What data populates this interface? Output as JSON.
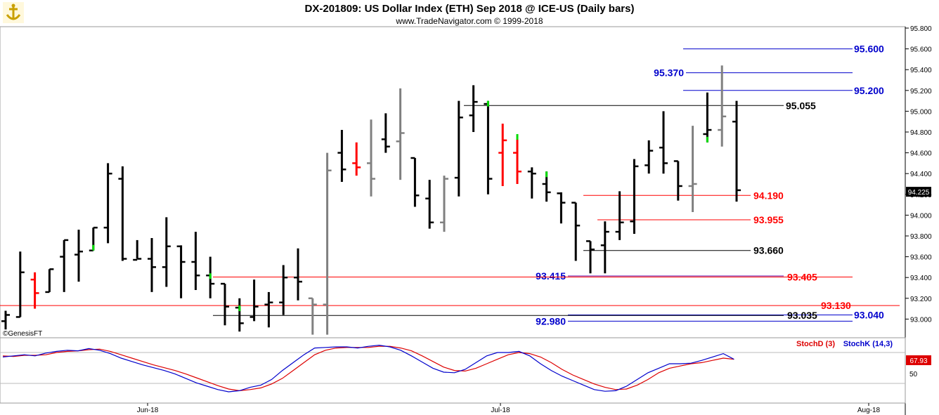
{
  "header": {
    "title": "DX-201809:  US Dollar Index (ETH) Sep 2018 @ ICE-US  (Daily bars)",
    "copyright": "www.TradeNavigator.com © 1999-2018",
    "logo_icon": "anchor-logo-icon"
  },
  "watermark": "©GenesisFT",
  "colors": {
    "up": "#000000",
    "down": "#000000",
    "gray": "#808080",
    "red_bar": "#ff0000",
    "green_tick": "#00dd00",
    "blue_level": "#0000cc",
    "red_level": "#ff0000",
    "black_level": "#000000",
    "purple_level": "#660099",
    "stoch_d": "#dd0000",
    "stoch_k": "#0000cc"
  },
  "chart_data": {
    "type": "ohlc",
    "price_axis": {
      "min": 92.85,
      "max": 95.9,
      "ticks": [
        "95.800",
        "95.600",
        "95.400",
        "95.200",
        "95.000",
        "94.800",
        "94.600",
        "94.400",
        "94.200",
        "94.000",
        "93.800",
        "93.600",
        "93.400",
        "93.200",
        "93.000"
      ]
    },
    "current_price": "94.225",
    "x_labels": [
      "Jun-18",
      "Jul-18",
      "Aug-18"
    ],
    "bars": [
      {
        "o": 92.98,
        "h": 93.08,
        "l": 92.9,
        "c": 93.04,
        "col": "black"
      },
      {
        "o": 93.02,
        "h": 93.65,
        "l": 93.02,
        "c": 93.45,
        "col": "black"
      },
      {
        "o": 93.38,
        "h": 93.45,
        "l": 93.1,
        "c": 93.25,
        "col": "red"
      },
      {
        "o": 93.26,
        "h": 93.48,
        "l": 93.26,
        "c": 93.48,
        "col": "black"
      },
      {
        "o": 93.6,
        "h": 93.76,
        "l": 93.26,
        "c": 93.76,
        "col": "black"
      },
      {
        "o": 93.62,
        "h": 93.86,
        "l": 93.36,
        "c": 93.65,
        "col": "black"
      },
      {
        "o": 93.66,
        "h": 93.88,
        "l": 93.66,
        "c": 93.88,
        "col": "black",
        "g": "l"
      },
      {
        "o": 93.88,
        "h": 94.5,
        "l": 93.73,
        "c": 94.4,
        "col": "black"
      },
      {
        "o": 94.35,
        "h": 94.47,
        "l": 93.56,
        "c": 93.58,
        "col": "black"
      },
      {
        "o": 93.57,
        "h": 93.76,
        "l": 93.58,
        "c": 93.58,
        "col": "black"
      },
      {
        "o": 93.58,
        "h": 93.78,
        "l": 93.26,
        "c": 93.5,
        "col": "black"
      },
      {
        "o": 93.5,
        "h": 93.98,
        "l": 93.31,
        "c": 93.7,
        "col": "black"
      },
      {
        "o": 93.7,
        "h": 93.71,
        "l": 93.2,
        "c": 93.55,
        "col": "black"
      },
      {
        "o": 93.55,
        "h": 93.84,
        "l": 93.28,
        "c": 93.42,
        "col": "black"
      },
      {
        "o": 93.42,
        "h": 93.6,
        "l": 93.2,
        "c": 93.34,
        "col": "black",
        "g": "o"
      },
      {
        "o": 93.34,
        "h": 93.34,
        "l": 92.94,
        "c": 93.12,
        "col": "black"
      },
      {
        "o": 93.11,
        "h": 93.2,
        "l": 92.88,
        "c": 92.96,
        "col": "black",
        "g": "o"
      },
      {
        "o": 93.02,
        "h": 93.38,
        "l": 92.98,
        "c": 93.12,
        "col": "black"
      },
      {
        "o": 93.14,
        "h": 93.26,
        "l": 92.92,
        "c": 93.16,
        "col": "black"
      },
      {
        "o": 93.16,
        "h": 93.52,
        "l": 93.04,
        "c": 93.4,
        "col": "black"
      },
      {
        "o": 93.4,
        "h": 93.68,
        "l": 93.18,
        "c": 93.36,
        "col": "black"
      },
      {
        "o": 93.2,
        "h": 93.2,
        "l": 92.85,
        "c": 93.14,
        "col": "gray"
      },
      {
        "o": 93.14,
        "h": 94.6,
        "l": 92.85,
        "c": 94.43,
        "col": "gray"
      },
      {
        "o": 94.6,
        "h": 94.82,
        "l": 94.32,
        "c": 94.44,
        "col": "black"
      },
      {
        "o": 94.5,
        "h": 94.7,
        "l": 94.38,
        "c": 94.46,
        "col": "red"
      },
      {
        "o": 94.5,
        "h": 94.92,
        "l": 94.18,
        "c": 94.35,
        "col": "gray"
      },
      {
        "o": 94.73,
        "h": 94.98,
        "l": 94.6,
        "c": 94.66,
        "col": "black"
      },
      {
        "o": 94.71,
        "h": 95.22,
        "l": 94.34,
        "c": 94.79,
        "col": "gray"
      },
      {
        "o": 94.55,
        "h": 94.55,
        "l": 94.08,
        "c": 94.19,
        "col": "black"
      },
      {
        "o": 94.16,
        "h": 94.34,
        "l": 93.87,
        "c": 93.93,
        "col": "black"
      },
      {
        "o": 93.93,
        "h": 94.38,
        "l": 93.84,
        "c": 94.35,
        "col": "gray"
      },
      {
        "o": 94.36,
        "h": 95.1,
        "l": 94.18,
        "c": 94.94,
        "col": "black"
      },
      {
        "o": 94.96,
        "h": 95.25,
        "l": 94.8,
        "c": 95.09,
        "col": "black"
      },
      {
        "o": 95.07,
        "h": 95.1,
        "l": 94.2,
        "c": 94.35,
        "col": "black",
        "g": "h"
      },
      {
        "o": 94.6,
        "h": 94.88,
        "l": 94.28,
        "c": 94.72,
        "col": "red"
      },
      {
        "o": 94.6,
        "h": 94.78,
        "l": 94.3,
        "c": 94.42,
        "col": "red",
        "g": "h"
      },
      {
        "o": 94.42,
        "h": 94.46,
        "l": 94.16,
        "c": 94.4,
        "col": "black"
      },
      {
        "o": 94.3,
        "h": 94.42,
        "l": 94.13,
        "c": 94.22,
        "col": "black",
        "g": "h"
      },
      {
        "o": 94.21,
        "h": 94.22,
        "l": 93.92,
        "c": 94.12,
        "col": "black"
      },
      {
        "o": 94.12,
        "h": 94.12,
        "l": 93.56,
        "c": 93.9,
        "col": "black"
      },
      {
        "o": 93.75,
        "h": 93.75,
        "l": 93.44,
        "c": 93.67,
        "col": "black"
      },
      {
        "o": 93.71,
        "h": 93.94,
        "l": 93.44,
        "c": 93.84,
        "col": "black"
      },
      {
        "o": 93.84,
        "h": 94.23,
        "l": 93.76,
        "c": 93.93,
        "col": "black"
      },
      {
        "o": 93.94,
        "h": 94.54,
        "l": 93.82,
        "c": 94.47,
        "col": "black"
      },
      {
        "o": 94.48,
        "h": 94.72,
        "l": 94.4,
        "c": 94.62,
        "col": "black"
      },
      {
        "o": 94.65,
        "h": 95.0,
        "l": 94.4,
        "c": 94.5,
        "col": "black"
      },
      {
        "o": 94.52,
        "h": 94.52,
        "l": 94.14,
        "c": 94.28,
        "col": "black"
      },
      {
        "o": 94.28,
        "h": 94.86,
        "l": 94.03,
        "c": 94.3,
        "col": "gray"
      },
      {
        "o": 94.78,
        "h": 95.18,
        "l": 94.7,
        "c": 94.82,
        "col": "black",
        "g": "l"
      },
      {
        "o": 94.82,
        "h": 95.44,
        "l": 94.66,
        "c": 94.95,
        "col": "gray"
      },
      {
        "o": 94.9,
        "h": 95.1,
        "l": 94.13,
        "c": 94.24,
        "col": "black"
      }
    ],
    "levels": [
      {
        "price": 95.6,
        "label": "95.600",
        "color": "blue",
        "x1": 972,
        "x2": 1213,
        "lx": 1215,
        "anchor": "start"
      },
      {
        "price": 95.37,
        "label": "95.370",
        "color": "blue",
        "x1": 976,
        "x2": 1213,
        "lx": 973,
        "anchor": "end"
      },
      {
        "price": 95.2,
        "label": "95.200",
        "color": "blue",
        "x1": 972,
        "x2": 1213,
        "lx": 1215,
        "anchor": "start"
      },
      {
        "price": 95.055,
        "label": "95.055",
        "color": "black",
        "x1": 660,
        "x2": 1115,
        "lx": 1118,
        "anchor": "start"
      },
      {
        "price": 94.19,
        "label": "94.190",
        "color": "red",
        "x1": 830,
        "x2": 1068,
        "lx": 1072,
        "anchor": "start"
      },
      {
        "price": 93.955,
        "label": "93.955",
        "color": "red",
        "x1": 850,
        "x2": 1068,
        "lx": 1072,
        "anchor": "start"
      },
      {
        "price": 93.66,
        "label": "93.660",
        "color": "black",
        "x1": 830,
        "x2": 1068,
        "lx": 1072,
        "anchor": "start"
      },
      {
        "price": 93.415,
        "label": "93.415",
        "color": "blue",
        "x1": 808,
        "x2": 1115,
        "lx": 805,
        "anchor": "end"
      },
      {
        "price": 93.405,
        "label": "93.405",
        "color": "red",
        "x1": 303,
        "x2": 1213,
        "lx": 1120,
        "anchor": "start"
      },
      {
        "price": 93.13,
        "label": "93.130",
        "color": "red",
        "x1": 0,
        "x2": 1280,
        "lx": 1168,
        "anchor": "start"
      },
      {
        "price": 93.04,
        "label": "93.040",
        "color": "blue",
        "x1": 808,
        "x2": 1213,
        "lx": 1215,
        "anchor": "start"
      },
      {
        "price": 93.035,
        "label": "93.035",
        "color": "black",
        "x1": 303,
        "x2": 1115,
        "lx": 1120,
        "anchor": "start"
      },
      {
        "price": 92.98,
        "label": "92.980",
        "color": "blue",
        "x1": 808,
        "x2": 1213,
        "lx": 805,
        "anchor": "end"
      }
    ],
    "stochastic": {
      "legend_d": "StochD (3)",
      "legend_k": "StochK (14,3)",
      "axis_label": "50",
      "current_value": "67.93",
      "k": [
        72,
        74,
        76,
        74,
        79,
        82,
        84,
        83,
        87,
        84,
        78,
        70,
        64,
        58,
        53,
        48,
        42,
        34,
        26,
        20,
        14,
        10,
        12,
        18,
        22,
        32,
        48,
        62,
        76,
        88,
        89,
        90,
        90,
        88,
        91,
        93,
        90,
        84,
        74,
        63,
        52,
        45,
        44,
        50,
        62,
        74,
        80,
        80,
        82,
        74,
        60,
        48,
        38,
        30,
        22,
        14,
        11,
        12,
        20,
        32,
        44,
        52,
        60,
        60,
        61,
        66,
        72,
        78,
        68
      ],
      "d": [
        74,
        73,
        75,
        75,
        76,
        80,
        82,
        83,
        85,
        86,
        82,
        76,
        70,
        64,
        58,
        53,
        48,
        42,
        35,
        28,
        21,
        15,
        12,
        14,
        17,
        24,
        34,
        48,
        62,
        76,
        84,
        88,
        89,
        89,
        89,
        91,
        91,
        88,
        83,
        74,
        64,
        54,
        48,
        47,
        52,
        60,
        68,
        76,
        80,
        78,
        72,
        62,
        50,
        40,
        32,
        24,
        18,
        14,
        15,
        22,
        32,
        44,
        52,
        56,
        60,
        62,
        66,
        70,
        68
      ]
    }
  }
}
